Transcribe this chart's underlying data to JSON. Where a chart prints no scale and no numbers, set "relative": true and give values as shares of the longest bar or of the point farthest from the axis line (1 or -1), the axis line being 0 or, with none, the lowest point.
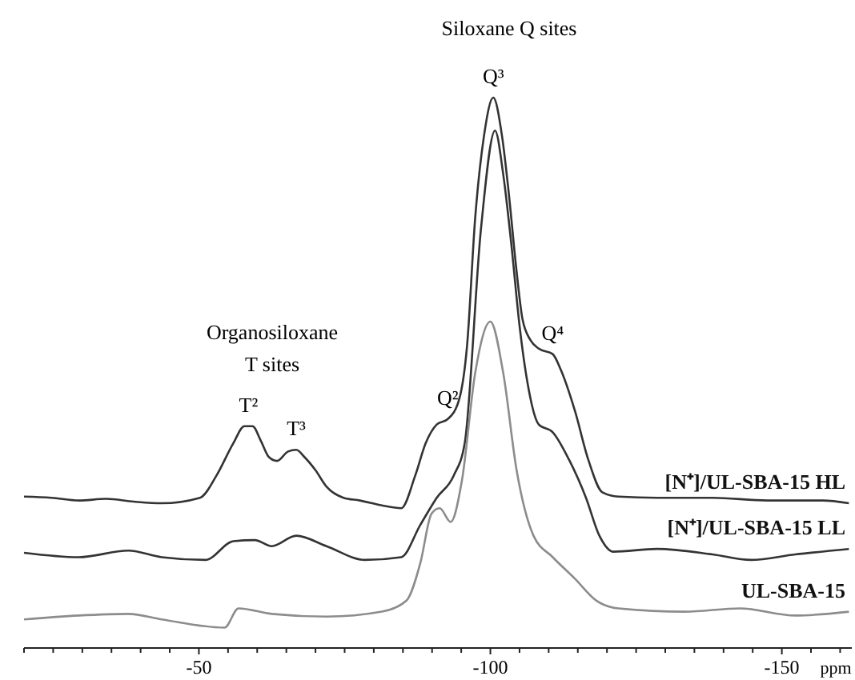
{
  "chart_data": {
    "type": "line",
    "relative": true,
    "xlabel": "ppm",
    "xlim": [
      -20,
      -162
    ],
    "xticks": [
      {
        "value": -20,
        "label": null
      },
      {
        "value": -25,
        "label": null
      },
      {
        "value": -30,
        "label": null
      },
      {
        "value": -35,
        "label": null
      },
      {
        "value": -40,
        "label": null
      },
      {
        "value": -45,
        "label": null
      },
      -50,
      {
        "value": -55,
        "label": null
      },
      {
        "value": -60,
        "label": null
      },
      {
        "value": -65,
        "label": null
      },
      {
        "value": -70,
        "label": null
      },
      {
        "value": -75,
        "label": null
      },
      {
        "value": -80,
        "label": null
      },
      {
        "value": -85,
        "label": null
      },
      {
        "value": -90,
        "label": null
      },
      {
        "value": -95,
        "label": null
      },
      -100,
      {
        "value": -105,
        "label": null
      },
      {
        "value": -110,
        "label": null
      },
      {
        "value": -115,
        "label": null
      },
      {
        "value": -120,
        "label": null
      },
      {
        "value": -125,
        "label": null
      },
      {
        "value": -130,
        "label": null
      },
      {
        "value": -135,
        "label": null
      },
      {
        "value": -140,
        "label": null
      },
      {
        "value": -145,
        "label": null
      },
      -150,
      {
        "value": -155,
        "label": null
      },
      {
        "value": -160,
        "label": null
      }
    ],
    "tick_labels": "x",
    "grid": false,
    "legend": false,
    "series": [
      {
        "name": "[N⁺]/UL-SBA-15 HL",
        "color": "#333333",
        "x": [
          -20,
          -24.7,
          -29.4,
          -34.1,
          -38.8,
          -43.6,
          -50.2,
          -53,
          -55.9,
          -57.8,
          -59.2,
          -60.6,
          -62,
          -63.4,
          -65.3,
          -66.7,
          -68.1,
          -70,
          -71.9,
          -74.8,
          -77.6,
          -81.4,
          -84.7,
          -87.1,
          -88.9,
          -90.8,
          -92.7,
          -94.6,
          -96,
          -97.4,
          -98.9,
          -100.5,
          -102,
          -103.1,
          -104.5,
          -105.5,
          -106.9,
          -108.3,
          -110.7,
          -112.1,
          -114.5,
          -116.8,
          -119.2,
          -122,
          -128.6,
          -138.1,
          -147.5,
          -157,
          -161.5
        ],
        "values": [
          0.275,
          0.273,
          0.268,
          0.271,
          0.266,
          0.263,
          0.273,
          0.313,
          0.372,
          0.403,
          0.403,
          0.377,
          0.347,
          0.34,
          0.357,
          0.36,
          0.347,
          0.323,
          0.293,
          0.273,
          0.268,
          0.259,
          0.254,
          0.313,
          0.372,
          0.406,
          0.416,
          0.45,
          0.549,
          0.782,
          0.93,
          1.0,
          0.93,
          0.832,
          0.684,
          0.598,
          0.559,
          0.544,
          0.534,
          0.505,
          0.431,
          0.342,
          0.283,
          0.275,
          0.273,
          0.273,
          0.268,
          0.268,
          0.263
        ]
      },
      {
        "name": "[N⁺]/UL-SBA-15 LL",
        "color": "#333333",
        "x": [
          -20,
          -29.4,
          -37.9,
          -43.6,
          -51.1,
          -55.9,
          -59.6,
          -62.5,
          -66.7,
          -71.9,
          -78.5,
          -84.7,
          -88,
          -90.8,
          -93.7,
          -95.6,
          -98.4,
          -100.8,
          -102.2,
          -103.6,
          -105,
          -106.4,
          -108.3,
          -110.7,
          -113.5,
          -116.4,
          -118.7,
          -121.1,
          -128.6,
          -138.1,
          -144.7,
          -152.3,
          -161.5
        ],
        "values": [
          0.173,
          0.165,
          0.177,
          0.165,
          0.16,
          0.194,
          0.196,
          0.185,
          0.204,
          0.185,
          0.16,
          0.165,
          0.224,
          0.273,
          0.313,
          0.372,
          0.763,
          0.94,
          0.861,
          0.733,
          0.586,
          0.48,
          0.406,
          0.392,
          0.342,
          0.273,
          0.204,
          0.175,
          0.18,
          0.17,
          0.16,
          0.17,
          0.18
        ]
      },
      {
        "name": "UL-SBA-15",
        "color": "#8c8c8c",
        "x": [
          -20,
          -29.4,
          -37.9,
          -43.6,
          -54.4,
          -56.8,
          -62.5,
          -71.9,
          -81.4,
          -85.6,
          -88,
          -89.9,
          -91.3,
          -93.2,
          -95.1,
          -97.4,
          -100,
          -102.2,
          -104.5,
          -107.4,
          -110.7,
          -114.5,
          -118.2,
          -122,
          -133.4,
          -142.8,
          -152.3,
          -161.5
        ],
        "values": [
          0.052,
          0.059,
          0.062,
          0.052,
          0.037,
          0.072,
          0.062,
          0.057,
          0.066,
          0.086,
          0.155,
          0.244,
          0.254,
          0.229,
          0.303,
          0.5,
          0.593,
          0.5,
          0.323,
          0.204,
          0.165,
          0.126,
          0.086,
          0.072,
          0.066,
          0.072,
          0.059,
          0.066
        ]
      }
    ],
    "annotations": [
      "Siloxane Q sites",
      "Organosiloxane\nT sites",
      {
        "text": "Q³",
        "x": -100.5,
        "y": 1.0
      },
      {
        "text": "Q⁴",
        "x": -110.7,
        "y": 0.534
      },
      {
        "text": "Q²",
        "x": -92.7,
        "y": 0.416
      },
      {
        "text": "T²",
        "x": -58.5,
        "y": 0.403
      },
      {
        "text": "T³",
        "x": -66.7,
        "y": 0.36
      }
    ]
  }
}
